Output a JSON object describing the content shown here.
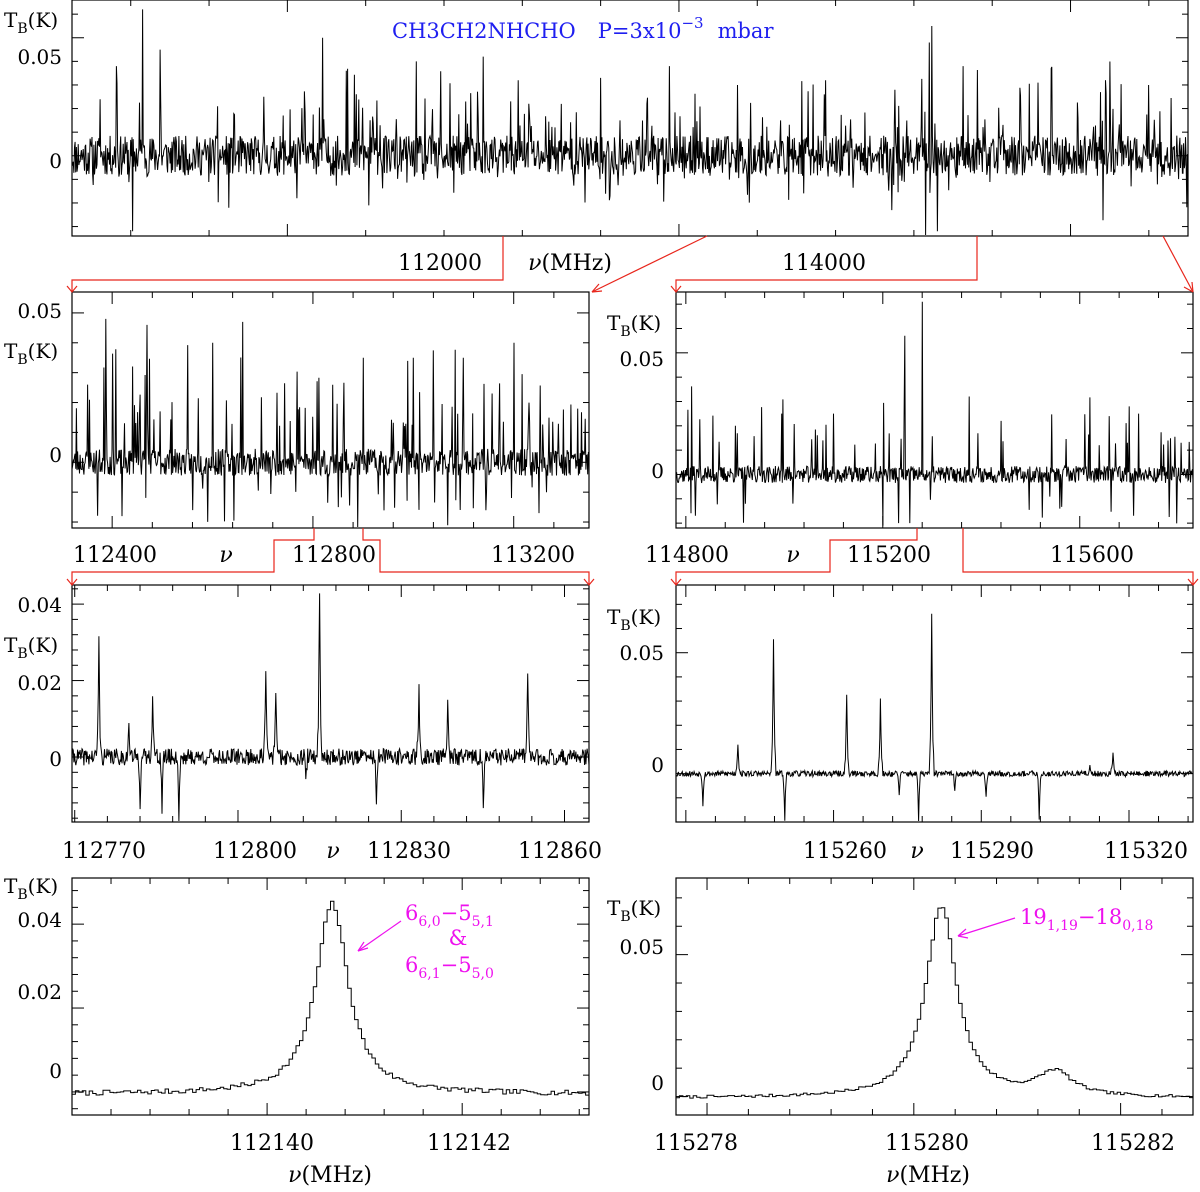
{
  "colors": {
    "axis": "#000000",
    "zoom_arrow": "#e8261c",
    "title": "#1f1ff0",
    "assignment": "#ee11ee"
  },
  "chart_data": [
    {
      "id": "full",
      "type": "line",
      "title": "CH3CH2NHCHO  P=3x10^-3 mbar",
      "title_parts": {
        "molecule": "CH3CH2NHCHO",
        "pressure": "P=3x10",
        "exponent": "−3",
        "unit": "mbar"
      },
      "xlim": [
        110900,
        116600
      ],
      "ylim": [
        -0.034,
        0.066
      ],
      "xticks": [
        112000,
        114000
      ],
      "yticks": [
        0,
        0.05
      ],
      "ytick_labels": [
        "0",
        "0.05"
      ],
      "xlabel": "ν(MHz)",
      "ylabel": "TB(K)",
      "noise": 0.0085,
      "lines": [
        [
          111260,
          0.062
        ],
        [
          111350,
          0.045
        ],
        [
          111880,
          0.025
        ],
        [
          112180,
          0.05
        ],
        [
          112300,
          0.036
        ],
        [
          112660,
          0.04
        ],
        [
          113000,
          0.042
        ],
        [
          113180,
          0.032
        ],
        [
          113600,
          0.033
        ],
        [
          113950,
          0.038
        ],
        [
          114300,
          0.03
        ],
        [
          114750,
          0.032
        ],
        [
          115280,
          0.048
        ],
        [
          115290,
          0.055
        ],
        [
          115450,
          0.038
        ],
        [
          115900,
          0.037
        ],
        [
          116180,
          0.032
        ],
        [
          116400,
          0.03
        ]
      ],
      "neg_lines": [
        [
          111210,
          -0.032
        ],
        [
          111700,
          -0.022
        ],
        [
          112050,
          -0.018
        ],
        [
          115260,
          -0.034
        ],
        [
          115320,
          -0.032
        ]
      ],
      "n_random_lines": 170,
      "seed": 11
    },
    {
      "id": "mid_left",
      "type": "line",
      "xlim": [
        112320,
        113350
      ],
      "ylim": [
        -0.022,
        0.057
      ],
      "xticks": [
        112400,
        112800,
        113200
      ],
      "yticks": [
        0,
        0.05
      ],
      "ytick_labels": [
        "0",
        "0.05"
      ],
      "xlabel": "ν",
      "ylabel": "TB(K)",
      "noise": 0.0045,
      "lines": [
        [
          112387,
          0.048
        ],
        [
          112470,
          0.046
        ],
        [
          112600,
          0.04
        ],
        [
          112660,
          0.047
        ],
        [
          112900,
          0.035
        ],
        [
          113000,
          0.035
        ],
        [
          113100,
          0.035
        ],
        [
          113200,
          0.04
        ]
      ],
      "neg_lines": [
        [
          112420,
          -0.018
        ],
        [
          112560,
          -0.016
        ],
        [
          112850,
          -0.015
        ],
        [
          113250,
          -0.017
        ]
      ],
      "n_random_lines": 110,
      "seed": 23
    },
    {
      "id": "mid_right",
      "type": "line",
      "xlim": [
        114780,
        115830
      ],
      "ylim": [
        -0.022,
        0.075
      ],
      "xticks": [
        114800,
        115200,
        115600
      ],
      "yticks": [
        0,
        0.05
      ],
      "ytick_labels": [
        "0",
        "0.05"
      ],
      "xlabel": "ν",
      "ylabel": "TB(K)",
      "noise": 0.0035,
      "lines": [
        [
          115245,
          0.057
        ],
        [
          115280,
          0.071
        ],
        [
          114900,
          0.02
        ],
        [
          114995,
          0.025
        ],
        [
          115100,
          0.025
        ],
        [
          115440,
          0.022
        ],
        [
          115660,
          0.024
        ],
        [
          115700,
          0.028
        ],
        [
          115720,
          0.025
        ]
      ],
      "neg_lines": [
        [
          115200,
          -0.021
        ],
        [
          115232,
          -0.02
        ],
        [
          115255,
          -0.02
        ],
        [
          115710,
          -0.017
        ]
      ],
      "n_random_lines": 60,
      "seed": 37
    },
    {
      "id": "small_left",
      "type": "line",
      "xlim": [
        112769.5,
        112864.5
      ],
      "ylim": [
        -0.017,
        0.045
      ],
      "xticks": [
        112770,
        112800,
        112830,
        112860
      ],
      "yticks": [
        0,
        0.02,
        0.04
      ],
      "ytick_labels": [
        "0",
        "0.02",
        "0.04"
      ],
      "xlabel": "ν",
      "ylabel": "TB(K)",
      "noise": 0.0022,
      "lines": [
        [
          112774.4,
          0.031
        ],
        [
          112780.0,
          0.008
        ],
        [
          112784.3,
          0.017
        ],
        [
          112805.1,
          0.022
        ],
        [
          112806.9,
          0.018
        ],
        [
          112815.0,
          0.044
        ],
        [
          112833.2,
          0.017
        ],
        [
          112838.5,
          0.016
        ],
        [
          112853.2,
          0.023
        ]
      ],
      "neg_lines": [
        [
          112782.0,
          -0.012
        ],
        [
          112786.0,
          -0.014
        ],
        [
          112789.2,
          -0.017
        ],
        [
          112812.5,
          -0.007
        ],
        [
          112825.5,
          -0.012
        ],
        [
          112845.1,
          -0.014
        ]
      ],
      "n_random_lines": 0,
      "seed": 41
    },
    {
      "id": "small_right",
      "type": "line",
      "xlim": [
        115228,
        115333
      ],
      "ylim": [
        -0.02,
        0.078
      ],
      "xticks": [
        115260,
        115290,
        115320
      ],
      "yticks": [
        0,
        0.05
      ],
      "ytick_labels": [
        "0",
        "0.05"
      ],
      "xlabel": "ν",
      "ylabel": "TB(K)",
      "noise": 0.0012,
      "lines": [
        [
          115240.6,
          0.013
        ],
        [
          115247.8,
          0.056
        ],
        [
          115262.7,
          0.032
        ],
        [
          115269.5,
          0.03
        ],
        [
          115279.9,
          0.066
        ],
        [
          115316.7,
          0.008
        ],
        [
          115312.0,
          0.003
        ]
      ],
      "neg_lines": [
        [
          115233.5,
          -0.013
        ],
        [
          115250.1,
          -0.02
        ],
        [
          115277.2,
          -0.02
        ],
        [
          115273.3,
          -0.009
        ],
        [
          115291.0,
          -0.01
        ],
        [
          115301.8,
          -0.02
        ],
        [
          115284.6,
          -0.008
        ]
      ],
      "n_random_lines": 0,
      "seed": 53
    },
    {
      "id": "line_left",
      "type": "line",
      "step": true,
      "xlim": [
        112138.0,
        112143.3
      ],
      "ylim": [
        -0.0055,
        0.051
      ],
      "xticks": [
        112140,
        112142
      ],
      "yticks": [
        0,
        0.02,
        0.04
      ],
      "ytick_labels": [
        "0",
        "0.02",
        "0.04"
      ],
      "xlabel": "ν(MHz)",
      "ylabel": "TB(K)",
      "noise": 0.0006,
      "baseline": -0.0005,
      "profile": {
        "center": 112140.65,
        "amp": 0.0455,
        "width": 0.2
      },
      "assignment": {
        "line1": "66,0−55,1",
        "amp": "&",
        "line2": "66,1−55,0"
      }
    },
    {
      "id": "line_right",
      "type": "line",
      "step": true,
      "xlim": [
        115277.7,
        115282.7
      ],
      "ylim": [
        -0.0065,
        0.077
      ],
      "xticks": [
        115278,
        115280,
        115282
      ],
      "yticks": [
        0,
        0.05
      ],
      "ytick_labels": [
        "0",
        "0.05"
      ],
      "xlabel": "ν(MHz)",
      "ylabel": "TB(K)",
      "noise": 0.0005,
      "baseline": -0.0005,
      "profile": {
        "center": 115280.25,
        "amp": 0.0675,
        "width": 0.18,
        "secondary": [
          115281.35,
          0.0085,
          0.2
        ]
      },
      "assignment": {
        "line1": "191,19−180,18"
      }
    }
  ]
}
